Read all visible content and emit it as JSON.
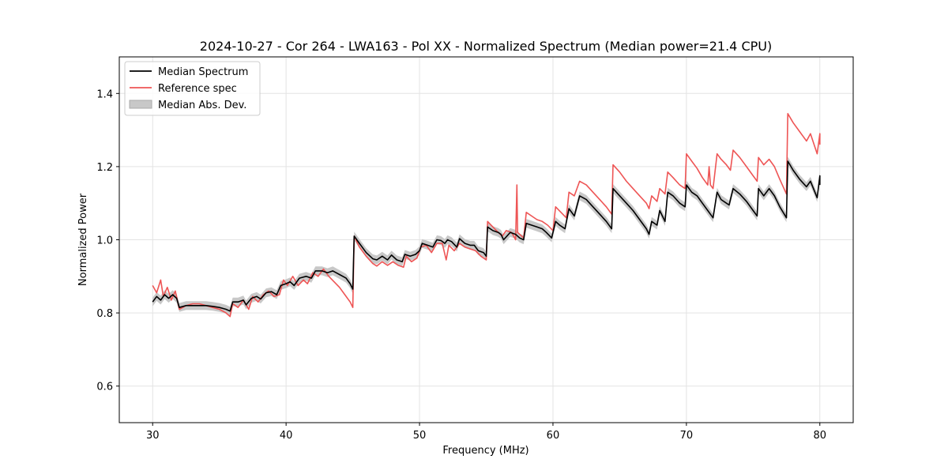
{
  "chart_data": {
    "type": "line",
    "title": "2024-10-27 - Cor 264 - LWA163 - Pol XX - Normalized Spectrum (Median power=21.4 CPU)",
    "xlabel": "Frequency (MHz)",
    "ylabel": "Normalized Power",
    "xlim": [
      27.5,
      82.5
    ],
    "ylim": [
      0.5,
      1.5
    ],
    "xticks": [
      30,
      40,
      50,
      60,
      70,
      80
    ],
    "yticks": [
      0.6,
      0.8,
      1.0,
      1.2,
      1.4
    ],
    "grid": true,
    "legend_position": "upper-left",
    "legend": [
      {
        "label": "Median Spectrum",
        "kind": "line",
        "color": "#000000"
      },
      {
        "label": "Reference spec",
        "kind": "line",
        "color": "#ee5555"
      },
      {
        "label": "Median Abs. Dev.",
        "kind": "patch",
        "color": "#c8c8c8"
      }
    ],
    "mad_halfwidth": 0.012,
    "series": [
      {
        "name": "Median Spectrum",
        "color": "#000000",
        "points": [
          [
            30.0,
            0.83
          ],
          [
            30.3,
            0.845
          ],
          [
            30.6,
            0.835
          ],
          [
            30.9,
            0.85
          ],
          [
            31.2,
            0.84
          ],
          [
            31.5,
            0.85
          ],
          [
            31.8,
            0.84
          ],
          [
            32.0,
            0.815
          ],
          [
            32.5,
            0.82
          ],
          [
            33.0,
            0.82
          ],
          [
            33.5,
            0.82
          ],
          [
            34.0,
            0.82
          ],
          [
            34.5,
            0.818
          ],
          [
            35.0,
            0.815
          ],
          [
            35.5,
            0.81
          ],
          [
            35.8,
            0.805
          ],
          [
            36.0,
            0.83
          ],
          [
            36.4,
            0.83
          ],
          [
            36.8,
            0.835
          ],
          [
            37.0,
            0.822
          ],
          [
            37.4,
            0.84
          ],
          [
            37.8,
            0.845
          ],
          [
            38.1,
            0.838
          ],
          [
            38.5,
            0.855
          ],
          [
            38.9,
            0.858
          ],
          [
            39.3,
            0.85
          ],
          [
            39.6,
            0.875
          ],
          [
            40.0,
            0.88
          ],
          [
            40.3,
            0.885
          ],
          [
            40.6,
            0.875
          ],
          [
            41.0,
            0.895
          ],
          [
            41.5,
            0.9
          ],
          [
            41.9,
            0.895
          ],
          [
            42.2,
            0.915
          ],
          [
            42.7,
            0.915
          ],
          [
            43.1,
            0.91
          ],
          [
            43.5,
            0.915
          ],
          [
            44.0,
            0.905
          ],
          [
            44.5,
            0.895
          ],
          [
            44.8,
            0.88
          ],
          [
            45.0,
            0.865
          ],
          [
            45.1,
            1.01
          ],
          [
            45.5,
            0.99
          ],
          [
            46.0,
            0.965
          ],
          [
            46.5,
            0.948
          ],
          [
            46.8,
            0.945
          ],
          [
            47.2,
            0.955
          ],
          [
            47.6,
            0.945
          ],
          [
            47.9,
            0.958
          ],
          [
            48.3,
            0.945
          ],
          [
            48.7,
            0.94
          ],
          [
            48.9,
            0.96
          ],
          [
            49.3,
            0.955
          ],
          [
            49.7,
            0.96
          ],
          [
            50.0,
            0.97
          ],
          [
            50.2,
            0.99
          ],
          [
            50.6,
            0.985
          ],
          [
            51.0,
            0.98
          ],
          [
            51.3,
            1.0
          ],
          [
            51.6,
            0.998
          ],
          [
            51.9,
            0.99
          ],
          [
            52.1,
            1.0
          ],
          [
            52.4,
            0.995
          ],
          [
            52.8,
            0.98
          ],
          [
            53.0,
            1.003
          ],
          [
            53.4,
            0.99
          ],
          [
            53.8,
            0.985
          ],
          [
            54.1,
            0.985
          ],
          [
            54.4,
            0.97
          ],
          [
            54.8,
            0.965
          ],
          [
            55.0,
            0.955
          ],
          [
            55.1,
            1.035
          ],
          [
            55.5,
            1.025
          ],
          [
            55.9,
            1.02
          ],
          [
            56.1,
            1.015
          ],
          [
            56.3,
            1.0
          ],
          [
            56.8,
            1.02
          ],
          [
            57.2,
            1.015
          ],
          [
            57.5,
            1.005
          ],
          [
            57.8,
            1.0
          ],
          [
            58.0,
            1.045
          ],
          [
            58.4,
            1.04
          ],
          [
            58.8,
            1.035
          ],
          [
            59.2,
            1.03
          ],
          [
            59.5,
            1.02
          ],
          [
            59.9,
            1.005
          ],
          [
            60.2,
            1.05
          ],
          [
            60.5,
            1.04
          ],
          [
            60.9,
            1.03
          ],
          [
            61.2,
            1.085
          ],
          [
            61.6,
            1.065
          ],
          [
            62.0,
            1.12
          ],
          [
            62.5,
            1.11
          ],
          [
            63.0,
            1.09
          ],
          [
            63.5,
            1.07
          ],
          [
            64.0,
            1.05
          ],
          [
            64.4,
            1.03
          ],
          [
            64.5,
            1.14
          ],
          [
            65.0,
            1.12
          ],
          [
            65.5,
            1.1
          ],
          [
            66.0,
            1.08
          ],
          [
            66.5,
            1.055
          ],
          [
            67.0,
            1.03
          ],
          [
            67.2,
            1.015
          ],
          [
            67.4,
            1.05
          ],
          [
            67.8,
            1.04
          ],
          [
            68.0,
            1.08
          ],
          [
            68.4,
            1.05
          ],
          [
            68.6,
            1.13
          ],
          [
            69.0,
            1.12
          ],
          [
            69.5,
            1.1
          ],
          [
            69.9,
            1.09
          ],
          [
            70.0,
            1.15
          ],
          [
            70.4,
            1.13
          ],
          [
            70.8,
            1.12
          ],
          [
            71.2,
            1.1
          ],
          [
            71.6,
            1.08
          ],
          [
            72.0,
            1.06
          ],
          [
            72.3,
            1.13
          ],
          [
            72.6,
            1.11
          ],
          [
            73.0,
            1.1
          ],
          [
            73.2,
            1.095
          ],
          [
            73.5,
            1.14
          ],
          [
            74.0,
            1.125
          ],
          [
            74.5,
            1.105
          ],
          [
            75.0,
            1.08
          ],
          [
            75.3,
            1.065
          ],
          [
            75.4,
            1.14
          ],
          [
            75.8,
            1.12
          ],
          [
            76.2,
            1.14
          ],
          [
            76.6,
            1.12
          ],
          [
            77.0,
            1.09
          ],
          [
            77.5,
            1.06
          ],
          [
            77.6,
            1.215
          ],
          [
            78.0,
            1.19
          ],
          [
            78.5,
            1.165
          ],
          [
            79.0,
            1.145
          ],
          [
            79.3,
            1.16
          ],
          [
            79.8,
            1.115
          ],
          [
            80.0,
            1.175
          ],
          [
            80.0,
            1.15
          ]
        ]
      },
      {
        "name": "Reference spec",
        "color": "#ee5555",
        "points": [
          [
            30.0,
            0.875
          ],
          [
            30.3,
            0.855
          ],
          [
            30.6,
            0.89
          ],
          [
            30.8,
            0.845
          ],
          [
            31.1,
            0.87
          ],
          [
            31.4,
            0.835
          ],
          [
            31.7,
            0.86
          ],
          [
            32.0,
            0.81
          ],
          [
            32.5,
            0.82
          ],
          [
            33.0,
            0.825
          ],
          [
            33.5,
            0.825
          ],
          [
            34.0,
            0.82
          ],
          [
            34.5,
            0.815
          ],
          [
            35.0,
            0.81
          ],
          [
            35.5,
            0.8
          ],
          [
            35.8,
            0.79
          ],
          [
            36.0,
            0.825
          ],
          [
            36.4,
            0.815
          ],
          [
            36.8,
            0.835
          ],
          [
            37.2,
            0.81
          ],
          [
            37.5,
            0.845
          ],
          [
            37.9,
            0.83
          ],
          [
            38.3,
            0.85
          ],
          [
            38.7,
            0.86
          ],
          [
            39.1,
            0.845
          ],
          [
            39.5,
            0.85
          ],
          [
            39.8,
            0.89
          ],
          [
            40.1,
            0.875
          ],
          [
            40.5,
            0.9
          ],
          [
            40.9,
            0.875
          ],
          [
            41.3,
            0.89
          ],
          [
            41.6,
            0.88
          ],
          [
            42.0,
            0.91
          ],
          [
            42.4,
            0.9
          ],
          [
            42.8,
            0.92
          ],
          [
            43.2,
            0.9
          ],
          [
            43.6,
            0.885
          ],
          [
            44.0,
            0.87
          ],
          [
            44.4,
            0.85
          ],
          [
            44.8,
            0.83
          ],
          [
            45.0,
            0.815
          ],
          [
            45.1,
            1.01
          ],
          [
            45.5,
            0.98
          ],
          [
            46.0,
            0.955
          ],
          [
            46.5,
            0.935
          ],
          [
            46.8,
            0.928
          ],
          [
            47.2,
            0.94
          ],
          [
            47.6,
            0.93
          ],
          [
            48.0,
            0.94
          ],
          [
            48.4,
            0.93
          ],
          [
            48.8,
            0.925
          ],
          [
            49.0,
            0.955
          ],
          [
            49.4,
            0.94
          ],
          [
            49.8,
            0.95
          ],
          [
            50.1,
            0.98
          ],
          [
            50.5,
            0.985
          ],
          [
            50.9,
            0.965
          ],
          [
            51.3,
            0.99
          ],
          [
            51.7,
            0.99
          ],
          [
            52.0,
            0.945
          ],
          [
            52.2,
            0.985
          ],
          [
            52.6,
            0.97
          ],
          [
            53.0,
            0.99
          ],
          [
            53.4,
            0.98
          ],
          [
            53.8,
            0.975
          ],
          [
            54.2,
            0.97
          ],
          [
            54.6,
            0.955
          ],
          [
            55.0,
            0.945
          ],
          [
            55.1,
            1.05
          ],
          [
            55.5,
            1.035
          ],
          [
            55.9,
            1.02
          ],
          [
            56.2,
            1.01
          ],
          [
            56.5,
            1.025
          ],
          [
            56.9,
            1.02
          ],
          [
            57.2,
            1.0
          ],
          [
            57.3,
            1.15
          ],
          [
            57.35,
            1.02
          ],
          [
            57.8,
            1.005
          ],
          [
            58.0,
            1.075
          ],
          [
            58.4,
            1.065
          ],
          [
            58.8,
            1.055
          ],
          [
            59.2,
            1.05
          ],
          [
            59.6,
            1.04
          ],
          [
            60.0,
            1.025
          ],
          [
            60.2,
            1.09
          ],
          [
            60.6,
            1.075
          ],
          [
            61.0,
            1.06
          ],
          [
            61.2,
            1.13
          ],
          [
            61.6,
            1.12
          ],
          [
            62.0,
            1.16
          ],
          [
            62.5,
            1.15
          ],
          [
            63.0,
            1.13
          ],
          [
            63.5,
            1.11
          ],
          [
            64.0,
            1.09
          ],
          [
            64.4,
            1.07
          ],
          [
            64.5,
            1.205
          ],
          [
            65.0,
            1.185
          ],
          [
            65.5,
            1.16
          ],
          [
            66.0,
            1.14
          ],
          [
            66.5,
            1.12
          ],
          [
            67.0,
            1.1
          ],
          [
            67.2,
            1.085
          ],
          [
            67.4,
            1.12
          ],
          [
            67.8,
            1.105
          ],
          [
            68.0,
            1.14
          ],
          [
            68.4,
            1.125
          ],
          [
            68.6,
            1.185
          ],
          [
            69.0,
            1.17
          ],
          [
            69.5,
            1.15
          ],
          [
            69.9,
            1.14
          ],
          [
            70.0,
            1.235
          ],
          [
            70.4,
            1.215
          ],
          [
            70.8,
            1.195
          ],
          [
            71.2,
            1.17
          ],
          [
            71.6,
            1.15
          ],
          [
            71.7,
            1.2
          ],
          [
            71.8,
            1.15
          ],
          [
            72.0,
            1.14
          ],
          [
            72.3,
            1.235
          ],
          [
            72.6,
            1.22
          ],
          [
            73.0,
            1.205
          ],
          [
            73.3,
            1.19
          ],
          [
            73.5,
            1.245
          ],
          [
            74.0,
            1.225
          ],
          [
            74.5,
            1.2
          ],
          [
            75.0,
            1.175
          ],
          [
            75.3,
            1.16
          ],
          [
            75.4,
            1.225
          ],
          [
            75.8,
            1.205
          ],
          [
            76.2,
            1.22
          ],
          [
            76.6,
            1.2
          ],
          [
            77.0,
            1.165
          ],
          [
            77.5,
            1.125
          ],
          [
            77.6,
            1.345
          ],
          [
            78.0,
            1.32
          ],
          [
            78.5,
            1.295
          ],
          [
            79.0,
            1.27
          ],
          [
            79.3,
            1.29
          ],
          [
            79.8,
            1.235
          ],
          [
            80.0,
            1.29
          ],
          [
            80.0,
            1.26
          ]
        ]
      }
    ]
  }
}
